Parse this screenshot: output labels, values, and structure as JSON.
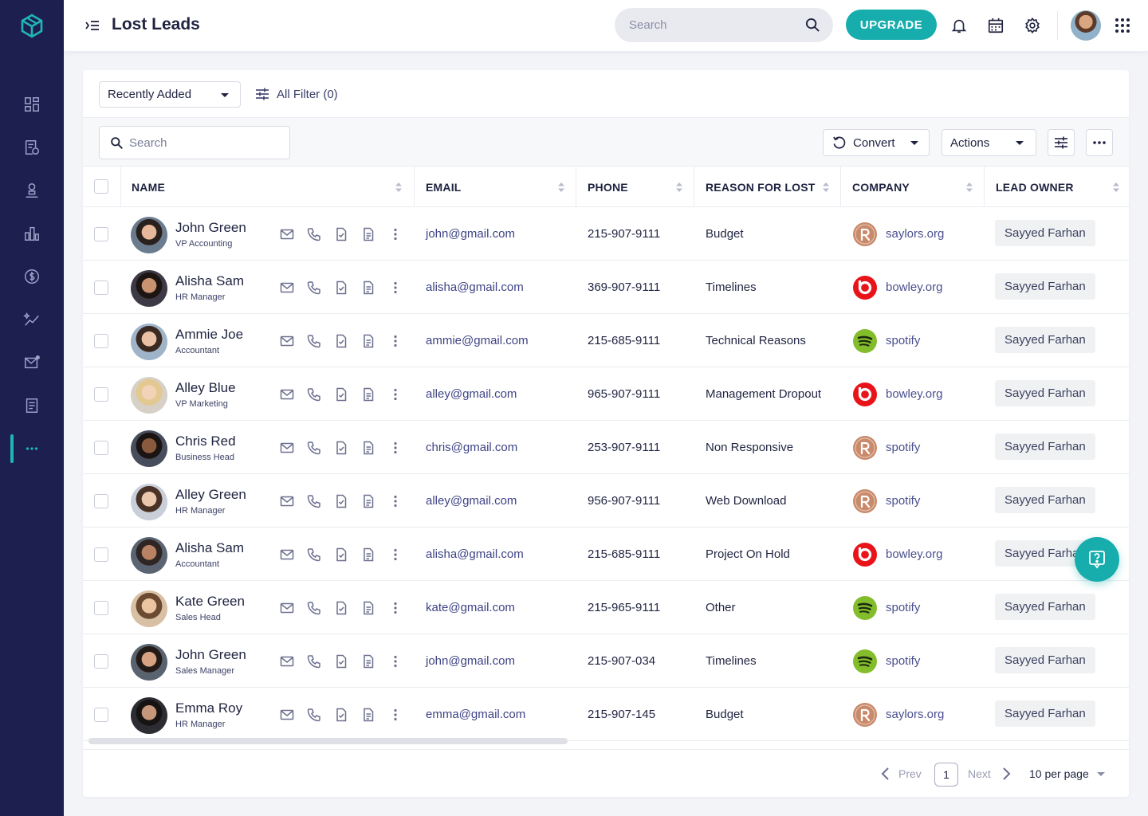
{
  "header": {
    "title": "Lost Leads",
    "search_placeholder": "Search",
    "upgrade_label": "UPGRADE"
  },
  "filters": {
    "sort_label": "Recently Added",
    "filter_label": "All Filter (0)"
  },
  "toolbar": {
    "search_placeholder": "Search",
    "convert_label": "Convert",
    "actions_label": "Actions"
  },
  "columns": {
    "name": "NAME",
    "email": "EMAIL",
    "phone": "PHONE",
    "reason": "REASON FOR LOST",
    "company": "COMPANY",
    "owner": "LEAD OWNER"
  },
  "rows": [
    {
      "name": "John Green",
      "title": "VP Accounting",
      "email": "john@gmail.com",
      "phone": "215-907-9111",
      "reason": "Budget",
      "company": "saylors.org",
      "company_logo": "saylors-logo",
      "owner": "Sayyed Farhan"
    },
    {
      "name": "Alisha Sam",
      "title": "HR Manager",
      "email": "alisha@gmail.com",
      "phone": "369-907-9111",
      "reason": "Timelines",
      "company": "bowley.org",
      "company_logo": "bowley-logo",
      "owner": "Sayyed Farhan"
    },
    {
      "name": "Ammie Joe",
      "title": "Accountant",
      "email": "ammie@gmail.com",
      "phone": "215-685-9111",
      "reason": "Technical Reasons",
      "company": "spotify",
      "company_logo": "spotify-logo",
      "owner": "Sayyed Farhan"
    },
    {
      "name": "Alley Blue",
      "title": "VP Marketing",
      "email": "alley@gmail.com",
      "phone": "965-907-9111",
      "reason": "Management Dropout",
      "company": "bowley.org",
      "company_logo": "bowley-logo",
      "owner": "Sayyed Farhan"
    },
    {
      "name": "Chris Red",
      "title": "Business Head",
      "email": "chris@gmail.com",
      "phone": "253-907-9111",
      "reason": "Non Responsive",
      "company": "spotify",
      "company_logo": "saylors-logo",
      "owner": "Sayyed Farhan"
    },
    {
      "name": "Alley Green",
      "title": "HR Manager",
      "email": "alley@gmail.com",
      "phone": "956-907-9111",
      "reason": "Web Download",
      "company": "spotify",
      "company_logo": "saylors-logo",
      "owner": "Sayyed Farhan"
    },
    {
      "name": "Alisha Sam",
      "title": "Accountant",
      "email": "alisha@gmail.com",
      "phone": "215-685-9111",
      "reason": "Project On Hold",
      "company": "bowley.org",
      "company_logo": "bowley-logo",
      "owner": "Sayyed Farhan"
    },
    {
      "name": "Kate Green",
      "title": "Sales Head",
      "email": "kate@gmail.com",
      "phone": "215-965-9111",
      "reason": "Other",
      "company": "spotify",
      "company_logo": "spotify-logo",
      "owner": "Sayyed Farhan"
    },
    {
      "name": "John Green",
      "title": "Sales Manager",
      "email": "john@gmail.com",
      "phone": "215-907-034",
      "reason": "Timelines",
      "company": "spotify",
      "company_logo": "spotify-logo",
      "owner": "Sayyed Farhan"
    },
    {
      "name": "Emma Roy",
      "title": "HR Manager",
      "email": "emma@gmail.com",
      "phone": "215-907-145",
      "reason": "Budget",
      "company": "saylors.org",
      "company_logo": "saylors-logo",
      "owner": "Sayyed Farhan"
    }
  ],
  "pagination": {
    "prev_label": "Prev",
    "current_page": "1",
    "next_label": "Next",
    "per_page_label": "10 per page"
  },
  "colors": {
    "sidebar_bg": "#1d1f4f",
    "accent": "#18adad",
    "saylors": "#c98a6b",
    "bowley": "#e8141a",
    "spotify": "#84bd2b"
  },
  "icons": {
    "sidebar": [
      "dashboard-icon",
      "leads-icon",
      "contacts-icon",
      "reports-icon",
      "deals-icon",
      "activities-icon",
      "mail-icon",
      "documents-icon",
      "more-icon"
    ],
    "row_actions": [
      "mail-icon",
      "phone-icon",
      "task-icon",
      "note-icon",
      "kebab-icon"
    ]
  }
}
